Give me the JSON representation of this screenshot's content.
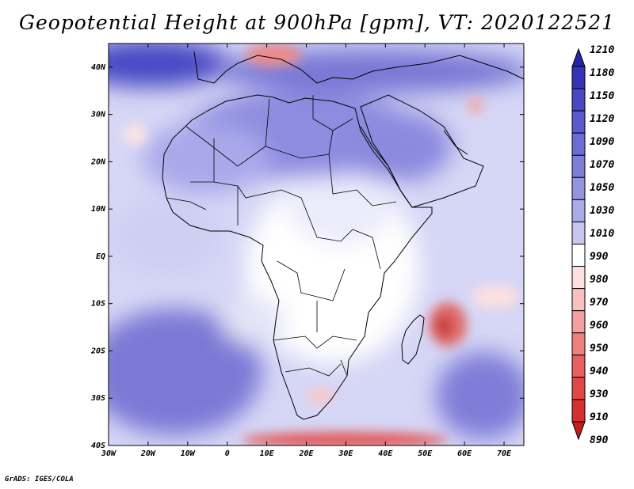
{
  "title": "Geopotential Height at 900hPa [gpm], VT: 2020122521",
  "credit": "GrADS: IGES/COLA",
  "map": {
    "lat_labels": [
      "40N",
      "30N",
      "20N",
      "10N",
      "EQ",
      "10S",
      "20S",
      "30S",
      "40S"
    ],
    "lon_labels": [
      "30W",
      "20W",
      "10W",
      "0",
      "10E",
      "20E",
      "30E",
      "40E",
      "50E",
      "60E",
      "70E"
    ],
    "lat_range": [
      -40,
      45
    ],
    "lon_range": [
      -30,
      75
    ]
  },
  "colorbar": {
    "labels": [
      "1210",
      "1180",
      "1150",
      "1120",
      "1090",
      "1070",
      "1050",
      "1030",
      "1010",
      "990",
      "980",
      "970",
      "960",
      "950",
      "940",
      "930",
      "910",
      "890"
    ],
    "colors": [
      "#2424a8",
      "#3434b8",
      "#4848c4",
      "#5a5ace",
      "#6c6cd4",
      "#7e7ed8",
      "#9494e0",
      "#ababe8",
      "#c6c6f0",
      "#ffffff",
      "#fde0e0",
      "#f9c0c0",
      "#f5a0a0",
      "#ef8080",
      "#e86060",
      "#e04848",
      "#d43030",
      "#c41c1c"
    ]
  }
}
